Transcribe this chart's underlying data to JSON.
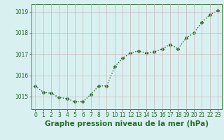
{
  "x": [
    0,
    1,
    2,
    3,
    4,
    5,
    6,
    7,
    8,
    9,
    10,
    11,
    12,
    13,
    14,
    15,
    16,
    17,
    18,
    19,
    20,
    21,
    22,
    23
  ],
  "y": [
    1015.5,
    1015.2,
    1015.15,
    1014.95,
    1014.9,
    1014.75,
    1014.75,
    1015.1,
    1015.5,
    1015.5,
    1016.4,
    1016.8,
    1017.05,
    1017.15,
    1017.05,
    1017.1,
    1017.25,
    1017.45,
    1017.25,
    1017.75,
    1018.0,
    1018.5,
    1018.85,
    1019.05
  ],
  "line_color": "#2d6a2d",
  "marker": "D",
  "marker_size": 2.5,
  "line_width": 1.0,
  "bg_color": "#d8f0f0",
  "grid_color": "#c8b8b8",
  "xlabel": "Graphe pression niveau de la mer (hPa)",
  "xlabel_fontsize": 7.5,
  "xlabel_color": "#2d6a2d",
  "ytick_labels": [
    "1015",
    "1016",
    "1017",
    "1018",
    "1019"
  ],
  "ytick_vals": [
    1015,
    1016,
    1017,
    1018,
    1019
  ],
  "xticks": [
    0,
    1,
    2,
    3,
    4,
    5,
    6,
    7,
    8,
    9,
    10,
    11,
    12,
    13,
    14,
    15,
    16,
    17,
    18,
    19,
    20,
    21,
    22,
    23
  ],
  "ylim": [
    1014.4,
    1019.35
  ],
  "xlim": [
    -0.5,
    23.5
  ],
  "tick_fontsize": 5.5,
  "tick_color": "#2d6a2d",
  "spine_color": "#2d6a2d"
}
